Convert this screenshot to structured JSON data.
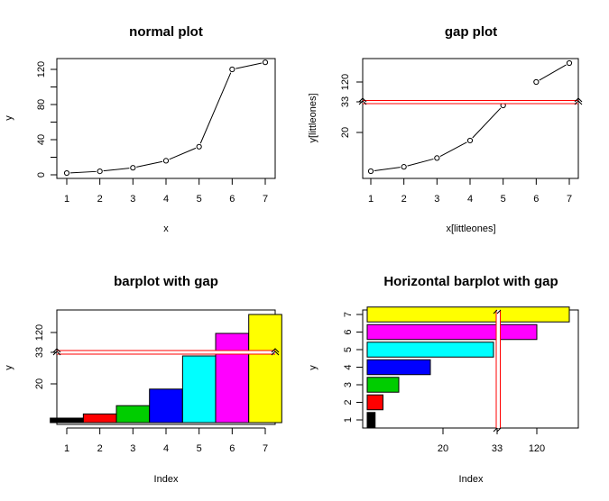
{
  "chart_data": [
    {
      "id": "p1",
      "type": "line",
      "title": "normal plot",
      "xlabel": "x",
      "ylabel": "y",
      "x": [
        1,
        2,
        3,
        4,
        5,
        6,
        7
      ],
      "values": [
        2,
        4,
        8,
        16,
        32,
        120,
        128
      ],
      "xlim": [
        0.8,
        7.2
      ],
      "ylim": [
        0,
        133
      ],
      "xticks": [
        "1",
        "2",
        "3",
        "4",
        "5",
        "6",
        "7"
      ],
      "yticks": [
        "0",
        "40",
        "80",
        "120"
      ],
      "marker": "open-circle",
      "color": "#000000"
    },
    {
      "id": "p2",
      "type": "line",
      "title": "gap plot",
      "xlabel": "x[littleones]",
      "ylabel": "y[littleones]",
      "x": [
        1,
        2,
        3,
        4,
        5,
        6,
        7
      ],
      "values": [
        2,
        4,
        8,
        16,
        32,
        120,
        128
      ],
      "gap": [
        33,
        119
      ],
      "xticks": [
        "1",
        "2",
        "3",
        "4",
        "5",
        "6",
        "7"
      ],
      "yticks": [
        "20",
        "33",
        "120"
      ],
      "marker": "open-circle",
      "gap_color": "#ff0000"
    },
    {
      "id": "p3",
      "type": "bar",
      "title": "barplot with gap",
      "xlabel": "Index",
      "ylabel": "y",
      "categories": [
        "1",
        "2",
        "3",
        "4",
        "5",
        "6",
        "7"
      ],
      "values": [
        2,
        4,
        8,
        16,
        32,
        120,
        128
      ],
      "gap": [
        33,
        119
      ],
      "colors": [
        "#000000",
        "#ff0000",
        "#00cd00",
        "#0000ff",
        "#00ffff",
        "#ff00ff",
        "#ffff00"
      ],
      "xticks": [
        "1",
        "2",
        "3",
        "4",
        "5",
        "6",
        "7"
      ],
      "yticks": [
        "20",
        "33",
        "120"
      ],
      "gap_color": "#ff0000"
    },
    {
      "id": "p4",
      "type": "bar",
      "orientation": "horizontal",
      "title": "Horizontal barplot with gap",
      "xlabel": "Index",
      "ylabel": "y",
      "categories": [
        "1",
        "2",
        "3",
        "4",
        "5",
        "6",
        "7"
      ],
      "values": [
        2,
        4,
        8,
        16,
        32,
        120,
        128
      ],
      "gap": [
        33,
        119
      ],
      "colors": [
        "#000000",
        "#ff0000",
        "#00cd00",
        "#0000ff",
        "#00ffff",
        "#ff00ff",
        "#ffff00"
      ],
      "xticks": [
        "20",
        "33",
        "120"
      ],
      "yticks": [
        "1",
        "2",
        "3",
        "4",
        "5",
        "6",
        "7"
      ],
      "gap_color": "#ff0000"
    }
  ]
}
